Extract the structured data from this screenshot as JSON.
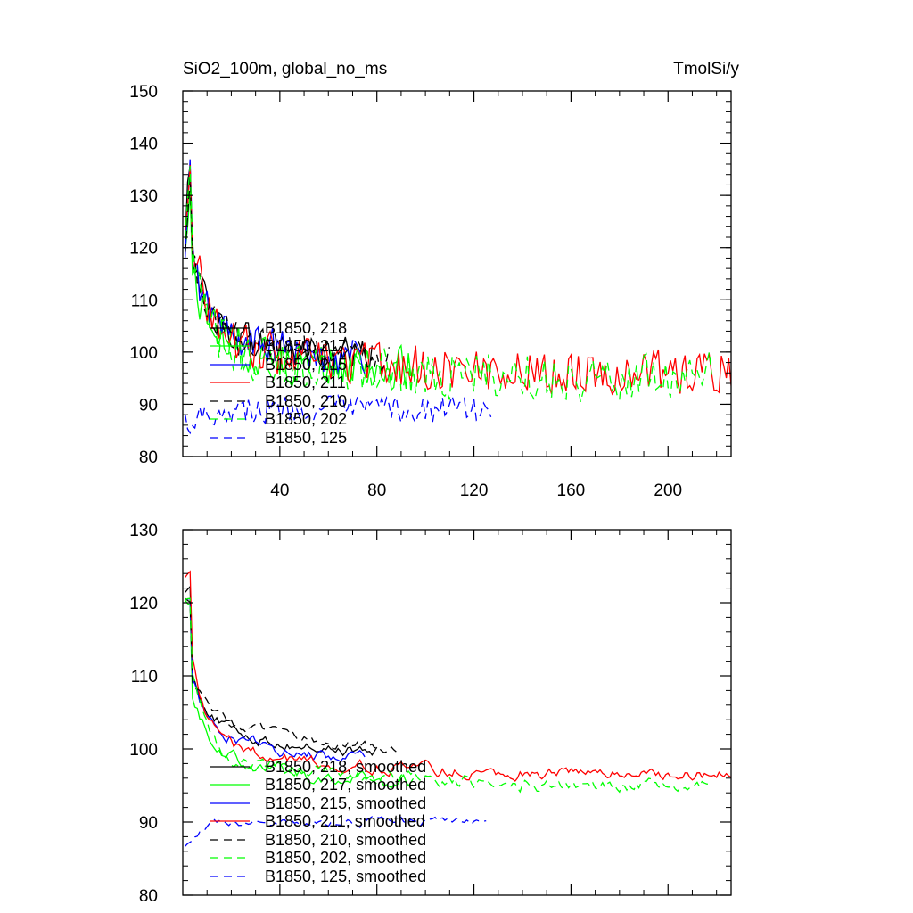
{
  "chart_data": [
    {
      "type": "line",
      "title_left": "SiO2_100m, global_no_ms",
      "title_right": "TmolSi/y",
      "xlabel": "",
      "ylabel": "",
      "xlim": [
        0,
        226
      ],
      "ylim": [
        80,
        150
      ],
      "yticks": [
        80,
        90,
        100,
        110,
        120,
        130,
        140,
        150
      ],
      "xticks": [
        40,
        80,
        120,
        160,
        200
      ],
      "grid": false,
      "legend_position": "lower-left",
      "series": [
        {
          "name": "B1850, 218",
          "color": "#000000",
          "dash": "solid",
          "length": 78,
          "start": 120,
          "peak": 138,
          "tau": 6,
          "drop": 22,
          "decay": 0.02,
          "end": 97,
          "noise": 3.5
        },
        {
          "name": "B1850, 217",
          "color": "#00ff00",
          "dash": "solid",
          "length": 95,
          "start": 118,
          "peak": 132,
          "tau": 6,
          "drop": 22,
          "decay": 0.03,
          "end": 96,
          "noise": 4
        },
        {
          "name": "B1850, 215",
          "color": "#0000ff",
          "dash": "solid",
          "length": 75,
          "start": 117,
          "peak": 135,
          "tau": 6,
          "drop": 22,
          "decay": 0.03,
          "end": 98,
          "noise": 3.5
        },
        {
          "name": "B1850, 211",
          "color": "#ff0000",
          "dash": "solid",
          "length": 226,
          "start": 122,
          "peak": 140,
          "tau": 6,
          "drop": 20,
          "decay": 0.02,
          "end": 96,
          "noise": 4
        },
        {
          "name": "B1850, 210",
          "color": "#000000",
          "dash": "dashed",
          "length": 85,
          "start": 118,
          "peak": 134,
          "tau": 6,
          "drop": 20,
          "decay": 0.03,
          "end": 99,
          "noise": 3
        },
        {
          "name": "B1850, 202",
          "color": "#00ff00",
          "dash": "dashed",
          "length": 218,
          "start": 120,
          "peak": 133,
          "tau": 6,
          "drop": 20,
          "decay": 0.02,
          "end": 95,
          "noise": 4.5
        },
        {
          "name": "B1850, 125",
          "color": "#0000ff",
          "dash": "dashed",
          "length": 127,
          "start": 87,
          "peak": 87,
          "tau": 6,
          "drop": 0,
          "decay": 0,
          "end": 89,
          "noise": 2.5
        }
      ]
    },
    {
      "type": "line",
      "title_left": "",
      "title_right": "",
      "xlabel": "",
      "ylabel": "",
      "xlim": [
        0,
        226
      ],
      "ylim": [
        80,
        130
      ],
      "yticks": [
        80,
        90,
        100,
        110,
        120,
        130
      ],
      "xticks": [],
      "grid": false,
      "legend_position": "lower-left",
      "series": [
        {
          "name": "B1850, 218, smoothed",
          "color": "#000000",
          "dash": "solid",
          "length": 80,
          "start": 122,
          "peak": 122,
          "tau": 6,
          "drop": 16,
          "decay": 0.03,
          "end": 99,
          "noise": 0.6
        },
        {
          "name": "B1850, 217, smoothed",
          "color": "#00ff00",
          "dash": "solid",
          "length": 95,
          "start": 121,
          "peak": 121,
          "tau": 6,
          "drop": 18,
          "decay": 0.03,
          "end": 95,
          "noise": 0.7
        },
        {
          "name": "B1850, 215, smoothed",
          "color": "#0000ff",
          "dash": "solid",
          "length": 75,
          "start": 121,
          "peak": 121,
          "tau": 6,
          "drop": 16,
          "decay": 0.03,
          "end": 98,
          "noise": 0.6
        },
        {
          "name": "B1850, 211, smoothed",
          "color": "#ff0000",
          "dash": "solid",
          "length": 226,
          "start": 124,
          "peak": 124,
          "tau": 6,
          "drop": 14,
          "decay": 0.02,
          "end": 96.5,
          "noise": 0.6
        },
        {
          "name": "B1850, 210, smoothed",
          "color": "#000000",
          "dash": "dashed",
          "length": 88,
          "start": 121,
          "peak": 121,
          "tau": 6,
          "drop": 16,
          "decay": 0.03,
          "end": 100,
          "noise": 0.5
        },
        {
          "name": "B1850, 202, smoothed",
          "color": "#00ff00",
          "dash": "dashed",
          "length": 218,
          "start": 121,
          "peak": 121,
          "tau": 6,
          "drop": 14,
          "decay": 0.02,
          "end": 95,
          "noise": 0.7
        },
        {
          "name": "B1850, 125, smoothed",
          "color": "#0000ff",
          "dash": "dashed",
          "length": 125,
          "start": 87,
          "peak": 87,
          "tau": 6,
          "drop": 0,
          "decay": 0,
          "end": 90,
          "noise": 0.4
        }
      ]
    }
  ]
}
